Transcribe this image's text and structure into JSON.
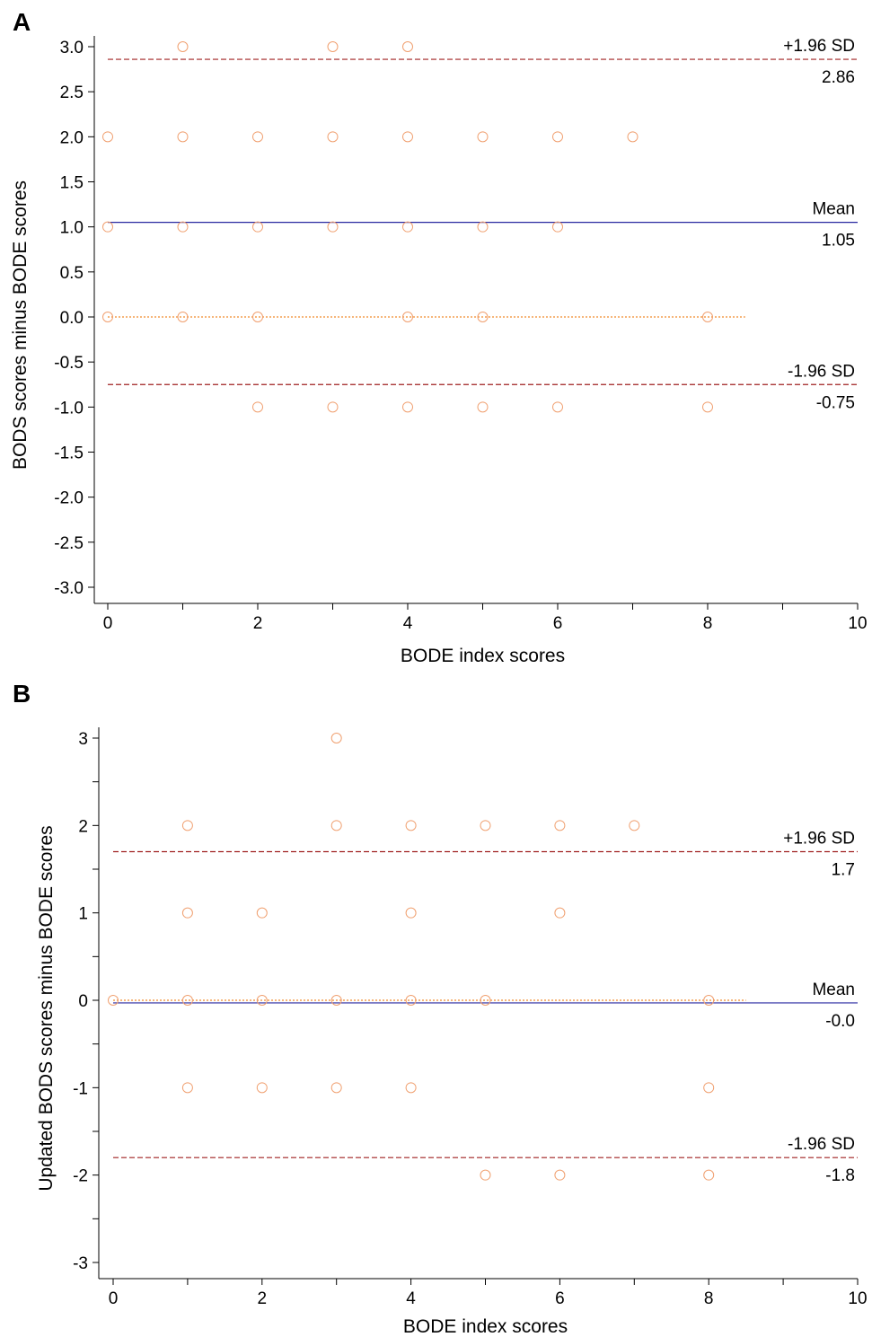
{
  "chart_data": [
    {
      "type": "scatter",
      "panel_label": "A",
      "title": "",
      "xlabel": "BODE index scores",
      "ylabel": "BODS scores minus BODE scores",
      "xlim": [
        0,
        10
      ],
      "ylim": [
        -3,
        3
      ],
      "x_ticks": [
        0,
        1,
        2,
        3,
        4,
        5,
        6,
        7,
        8,
        9,
        10
      ],
      "x_tick_labels": [
        "0",
        "",
        "2",
        "",
        "4",
        "",
        "6",
        "",
        "8",
        "",
        "10"
      ],
      "y_ticks": [
        -3,
        -2.5,
        -2,
        -1.5,
        -1,
        -0.5,
        0,
        0.5,
        1,
        1.5,
        2,
        2.5,
        3
      ],
      "y_tick_labels": [
        "-3.0",
        "-2.5",
        "-2.0",
        "-1.5",
        "-1.0",
        "-0.5",
        "0.0",
        "0.5",
        "1.0",
        "1.5",
        "2.0",
        "2.5",
        "3.0"
      ],
      "points": [
        {
          "x": 1,
          "y": 3
        },
        {
          "x": 3,
          "y": 3
        },
        {
          "x": 4,
          "y": 3
        },
        {
          "x": 0,
          "y": 2
        },
        {
          "x": 1,
          "y": 2
        },
        {
          "x": 2,
          "y": 2
        },
        {
          "x": 3,
          "y": 2
        },
        {
          "x": 4,
          "y": 2
        },
        {
          "x": 5,
          "y": 2
        },
        {
          "x": 6,
          "y": 2
        },
        {
          "x": 7,
          "y": 2
        },
        {
          "x": 0,
          "y": 1
        },
        {
          "x": 1,
          "y": 1
        },
        {
          "x": 2,
          "y": 1
        },
        {
          "x": 3,
          "y": 1
        },
        {
          "x": 4,
          "y": 1
        },
        {
          "x": 5,
          "y": 1
        },
        {
          "x": 6,
          "y": 1
        },
        {
          "x": 0,
          "y": 0
        },
        {
          "x": 1,
          "y": 0
        },
        {
          "x": 2,
          "y": 0
        },
        {
          "x": 4,
          "y": 0
        },
        {
          "x": 5,
          "y": 0
        },
        {
          "x": 8,
          "y": 0
        },
        {
          "x": 2,
          "y": -1
        },
        {
          "x": 3,
          "y": -1
        },
        {
          "x": 4,
          "y": -1
        },
        {
          "x": 5,
          "y": -1
        },
        {
          "x": 6,
          "y": -1
        },
        {
          "x": 8,
          "y": -1
        }
      ],
      "reference_lines": [
        {
          "name": "+1.96 SD",
          "value": 2.86,
          "value_label": "2.86",
          "style": "dashed",
          "color": "#a02020"
        },
        {
          "name": "Mean",
          "value": 1.05,
          "value_label": "1.05",
          "style": "solid",
          "color": "#2828a0"
        },
        {
          "name": "-1.96 SD",
          "value": -0.75,
          "value_label": "-0.75",
          "style": "dashed",
          "color": "#a02020"
        }
      ],
      "zero_line": {
        "value": 0,
        "x_end": 8.5,
        "style": "dotted",
        "color": "#f08a2a"
      },
      "point_color": "#f0a070",
      "grid": false
    },
    {
      "type": "scatter",
      "panel_label": "B",
      "title": "",
      "xlabel": "BODE index scores",
      "ylabel": "Updated BODS scores minus BODE scores",
      "xlim": [
        0,
        10
      ],
      "ylim": [
        -3,
        3
      ],
      "x_ticks": [
        0,
        1,
        2,
        3,
        4,
        5,
        6,
        7,
        8,
        9,
        10
      ],
      "x_tick_labels": [
        "0",
        "",
        "2",
        "",
        "4",
        "",
        "6",
        "",
        "8",
        "",
        "10"
      ],
      "y_ticks": [
        -3,
        -2.5,
        -2,
        -1.5,
        -1,
        -0.5,
        0,
        0.5,
        1,
        1.5,
        2,
        2.5,
        3
      ],
      "y_tick_labels": [
        "-3",
        "",
        "-2",
        "",
        "-1",
        "",
        "0",
        "",
        "1",
        "",
        "2",
        "",
        "3"
      ],
      "points": [
        {
          "x": 3,
          "y": 3
        },
        {
          "x": 1,
          "y": 2
        },
        {
          "x": 3,
          "y": 2
        },
        {
          "x": 4,
          "y": 2
        },
        {
          "x": 5,
          "y": 2
        },
        {
          "x": 6,
          "y": 2
        },
        {
          "x": 7,
          "y": 2
        },
        {
          "x": 1,
          "y": 1
        },
        {
          "x": 2,
          "y": 1
        },
        {
          "x": 4,
          "y": 1
        },
        {
          "x": 6,
          "y": 1
        },
        {
          "x": 0,
          "y": 0
        },
        {
          "x": 1,
          "y": 0
        },
        {
          "x": 2,
          "y": 0
        },
        {
          "x": 3,
          "y": 0
        },
        {
          "x": 4,
          "y": 0
        },
        {
          "x": 5,
          "y": 0
        },
        {
          "x": 8,
          "y": 0
        },
        {
          "x": 1,
          "y": -1
        },
        {
          "x": 2,
          "y": -1
        },
        {
          "x": 3,
          "y": -1
        },
        {
          "x": 4,
          "y": -1
        },
        {
          "x": 8,
          "y": -1
        },
        {
          "x": 5,
          "y": -2
        },
        {
          "x": 6,
          "y": -2
        },
        {
          "x": 8,
          "y": -2
        }
      ],
      "reference_lines": [
        {
          "name": "+1.96 SD",
          "value": 1.7,
          "value_label": "1.7",
          "style": "dashed",
          "color": "#a02020"
        },
        {
          "name": "Mean",
          "value": -0.03,
          "value_label": "-0.0",
          "style": "solid",
          "color": "#2828a0"
        },
        {
          "name": "-1.96 SD",
          "value": -1.8,
          "value_label": "-1.8",
          "style": "dashed",
          "color": "#a02020"
        }
      ],
      "zero_line": {
        "value": 0,
        "x_end": 8.5,
        "style": "dotted",
        "color": "#f08a2a"
      },
      "point_color": "#f0a070",
      "grid": false
    }
  ]
}
